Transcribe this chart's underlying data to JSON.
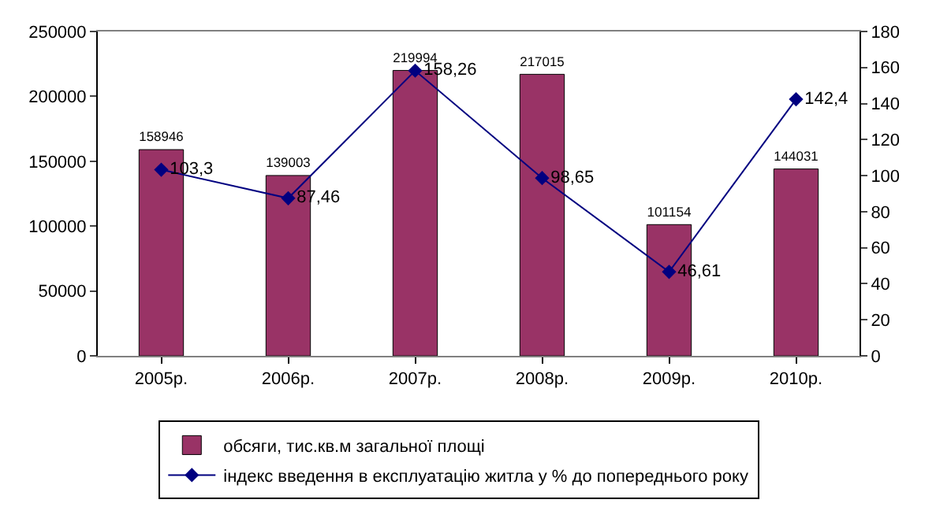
{
  "chart_data": {
    "type": "bar",
    "categories": [
      "2005р.",
      "2006р.",
      "2007р.",
      "2008р.",
      "2009р.",
      "2010р."
    ],
    "series": [
      {
        "name": "обсяги, тис.кв.м загальної площі",
        "color": "#993366",
        "values": [
          158946,
          139003,
          219994,
          217015,
          101154,
          144031
        ],
        "value_labels": [
          "158946",
          "139003",
          "219994",
          "217015",
          "101154",
          "144031"
        ]
      },
      {
        "name": "індекс введення в експлуатацію житла у % до попереднього року",
        "type": "line",
        "axis": "y2",
        "color": "#000080",
        "marker": "diamond",
        "values": [
          103.3,
          87.46,
          158.26,
          98.65,
          46.61,
          142.4
        ],
        "value_labels": [
          "103,3",
          "87,46",
          "158,26",
          "98,65",
          "46,61",
          "142,4"
        ]
      }
    ],
    "ylim": [
      0,
      250000
    ],
    "yticks": [
      0,
      50000,
      100000,
      150000,
      200000,
      250000
    ],
    "y2lim": [
      0,
      180
    ],
    "y2ticks": [
      0,
      20,
      40,
      60,
      80,
      100,
      120,
      140,
      160,
      180
    ],
    "grid": false,
    "legend": "bottom"
  }
}
